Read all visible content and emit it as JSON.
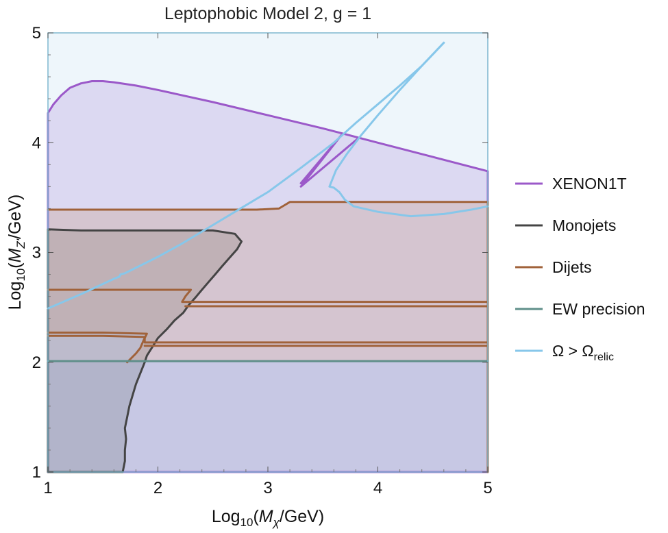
{
  "chart_data": {
    "type": "area",
    "title": "Leptophobic Model 2, g = 1",
    "xlabel": {
      "prefix": "Log",
      "sub": "10",
      "open": "(",
      "var": "M",
      "var_sub": "χ",
      "rest": "/GeV)"
    },
    "ylabel": {
      "prefix": "Log",
      "sub": "10",
      "open": "(",
      "var": "M",
      "var_sub": "Z'",
      "rest": "/GeV)"
    },
    "xlim": [
      1,
      5
    ],
    "ylim": [
      1,
      5
    ],
    "xticks": [
      1,
      2,
      3,
      4,
      5
    ],
    "yticks": [
      1,
      2,
      3,
      4,
      5
    ],
    "grid": false,
    "legend_position": "right",
    "series": [
      {
        "name": "XENON1T",
        "color": "#9b59c9",
        "fill": "#b89de0",
        "parts": [
          {
            "closed": true,
            "points": [
              [
                1.0,
                4.27
              ],
              [
                1.05,
                4.35
              ],
              [
                1.12,
                4.43
              ],
              [
                1.2,
                4.5
              ],
              [
                1.3,
                4.54
              ],
              [
                1.4,
                4.56
              ],
              [
                1.5,
                4.56
              ],
              [
                1.6,
                4.55
              ],
              [
                1.8,
                4.52
              ],
              [
                2.0,
                4.48
              ],
              [
                2.5,
                4.37
              ],
              [
                3.0,
                4.25
              ],
              [
                3.5,
                4.13
              ],
              [
                4.0,
                4.0
              ],
              [
                4.5,
                3.87
              ],
              [
                5.0,
                3.74
              ],
              [
                5.0,
                1.0
              ],
              [
                1.0,
                1.0
              ]
            ]
          },
          {
            "closed": false,
            "points": [
              [
                3.3,
                3.63
              ],
              [
                3.67,
                4.07
              ],
              [
                3.3,
                3.6
              ],
              [
                3.81,
                4.03
              ]
            ]
          }
        ]
      },
      {
        "name": "Monojets",
        "color": "#444444",
        "fill": "#7d7d7d",
        "parts": [
          {
            "closed": true,
            "points": [
              [
                1.0,
                3.21
              ],
              [
                1.3,
                3.2
              ],
              [
                1.6,
                3.2
              ],
              [
                1.9,
                3.2
              ],
              [
                2.2,
                3.2
              ],
              [
                2.5,
                3.2
              ],
              [
                2.7,
                3.17
              ],
              [
                2.76,
                3.1
              ],
              [
                2.72,
                3.03
              ],
              [
                2.65,
                2.95
              ],
              [
                2.58,
                2.87
              ],
              [
                2.52,
                2.8
              ],
              [
                2.46,
                2.73
              ],
              [
                2.4,
                2.66
              ],
              [
                2.35,
                2.6
              ],
              [
                2.28,
                2.52
              ],
              [
                2.23,
                2.45
              ],
              [
                2.15,
                2.38
              ],
              [
                2.08,
                2.3
              ],
              [
                2.0,
                2.22
              ],
              [
                1.95,
                2.14
              ],
              [
                1.9,
                2.06
              ],
              [
                1.88,
                2.0
              ],
              [
                1.84,
                1.9
              ],
              [
                1.8,
                1.8
              ],
              [
                1.77,
                1.7
              ],
              [
                1.74,
                1.6
              ],
              [
                1.72,
                1.5
              ],
              [
                1.7,
                1.4
              ],
              [
                1.71,
                1.3
              ],
              [
                1.7,
                1.2
              ],
              [
                1.7,
                1.1
              ],
              [
                1.68,
                1.0
              ],
              [
                1.0,
                1.0
              ]
            ]
          }
        ]
      },
      {
        "name": "Dijets",
        "color": "#a0623a",
        "fill": "#c89a8a",
        "parts": [
          {
            "closed": false,
            "points": [
              [
                1.0,
                3.39
              ],
              [
                1.5,
                3.39
              ],
              [
                2.0,
                3.39
              ],
              [
                2.5,
                3.39
              ],
              [
                2.9,
                3.39
              ],
              [
                3.1,
                3.4
              ],
              [
                3.15,
                3.43
              ],
              [
                3.2,
                3.46
              ],
              [
                3.5,
                3.46
              ],
              [
                4.0,
                3.46
              ],
              [
                4.5,
                3.46
              ],
              [
                5.0,
                3.46
              ]
            ]
          },
          {
            "closed": false,
            "points": [
              [
                1.0,
                2.66
              ],
              [
                1.5,
                2.66
              ],
              [
                2.0,
                2.66
              ],
              [
                2.3,
                2.66
              ],
              [
                2.25,
                2.6
              ],
              [
                2.22,
                2.55
              ],
              [
                2.5,
                2.55
              ],
              [
                3.0,
                2.55
              ],
              [
                4.0,
                2.55
              ],
              [
                5.0,
                2.55
              ]
            ]
          },
          {
            "closed": false,
            "points": [
              [
                2.25,
                2.51
              ],
              [
                3.0,
                2.51
              ],
              [
                4.0,
                2.51
              ],
              [
                5.0,
                2.51
              ]
            ]
          },
          {
            "closed": false,
            "points": [
              [
                1.0,
                2.27
              ],
              [
                1.5,
                2.27
              ],
              [
                1.9,
                2.26
              ],
              [
                1.87,
                2.2
              ],
              [
                1.84,
                2.13
              ],
              [
                1.8,
                2.08
              ],
              [
                1.72,
                2.0
              ]
            ]
          },
          {
            "closed": false,
            "points": [
              [
                1.0,
                2.24
              ],
              [
                1.5,
                2.24
              ],
              [
                1.88,
                2.23
              ],
              [
                1.88,
                2.18
              ],
              [
                2.5,
                2.18
              ],
              [
                3.0,
                2.18
              ],
              [
                4.0,
                2.18
              ],
              [
                5.0,
                2.18
              ]
            ]
          },
          {
            "closed": false,
            "points": [
              [
                1.88,
                2.15
              ],
              [
                2.5,
                2.15
              ],
              [
                3.0,
                2.15
              ],
              [
                4.0,
                2.15
              ],
              [
                5.0,
                2.15
              ]
            ]
          },
          {
            "closed": false,
            "points": [
              [
                5.0,
                3.46
              ],
              [
                5.0,
                1.0
              ]
            ]
          }
        ],
        "fill_region": [
          [
            1.0,
            3.39
          ],
          [
            2.9,
            3.39
          ],
          [
            3.1,
            3.4
          ],
          [
            3.15,
            3.43
          ],
          [
            3.2,
            3.46
          ],
          [
            5.0,
            3.46
          ],
          [
            5.0,
            2.0
          ],
          [
            1.72,
            2.0
          ],
          [
            1.8,
            2.08
          ],
          [
            1.84,
            2.13
          ],
          [
            1.87,
            2.2
          ],
          [
            1.9,
            2.26
          ],
          [
            1.0,
            2.27
          ]
        ]
      },
      {
        "name": "EW precision",
        "color": "#5f8f8a",
        "fill": "#9aa5c8",
        "parts": [
          {
            "closed": false,
            "points": [
              [
                1.0,
                2.01
              ],
              [
                5.0,
                2.01
              ]
            ]
          }
        ],
        "fill_region": [
          [
            1.0,
            2.01
          ],
          [
            5.0,
            2.01
          ],
          [
            5.0,
            1.0
          ],
          [
            1.0,
            1.0
          ]
        ]
      },
      {
        "name": "Ω > Ω",
        "name_sub": "relic",
        "color": "#87c7ea",
        "fill": "#d6ecf7",
        "parts": [
          {
            "closed": false,
            "points": [
              [
                1.0,
                2.49
              ],
              [
                1.3,
                2.62
              ],
              [
                1.6,
                2.76
              ],
              [
                1.65,
                2.78
              ],
              [
                1.66,
                2.8
              ],
              [
                1.7,
                2.81
              ],
              [
                2.0,
                2.96
              ],
              [
                2.2,
                3.07
              ],
              [
                2.4,
                3.19
              ],
              [
                2.7,
                3.37
              ],
              [
                3.0,
                3.55
              ],
              [
                3.3,
                3.77
              ],
              [
                3.6,
                4.0
              ],
              [
                3.8,
                4.18
              ],
              [
                4.0,
                4.35
              ],
              [
                4.2,
                4.52
              ],
              [
                4.4,
                4.7
              ],
              [
                4.6,
                4.91
              ]
            ]
          },
          {
            "closed": false,
            "points": [
              [
                4.6,
                4.91
              ],
              [
                4.4,
                4.7
              ],
              [
                4.2,
                4.48
              ],
              [
                4.0,
                4.25
              ],
              [
                3.85,
                4.07
              ],
              [
                3.72,
                3.9
              ],
              [
                3.62,
                3.75
              ],
              [
                3.56,
                3.6
              ],
              [
                3.6,
                3.59
              ],
              [
                3.65,
                3.55
              ],
              [
                3.7,
                3.48
              ],
              [
                3.78,
                3.42
              ],
              [
                4.0,
                3.37
              ],
              [
                4.3,
                3.33
              ],
              [
                4.6,
                3.35
              ],
              [
                4.85,
                3.39
              ],
              [
                5.0,
                3.42
              ]
            ]
          }
        ]
      }
    ]
  }
}
